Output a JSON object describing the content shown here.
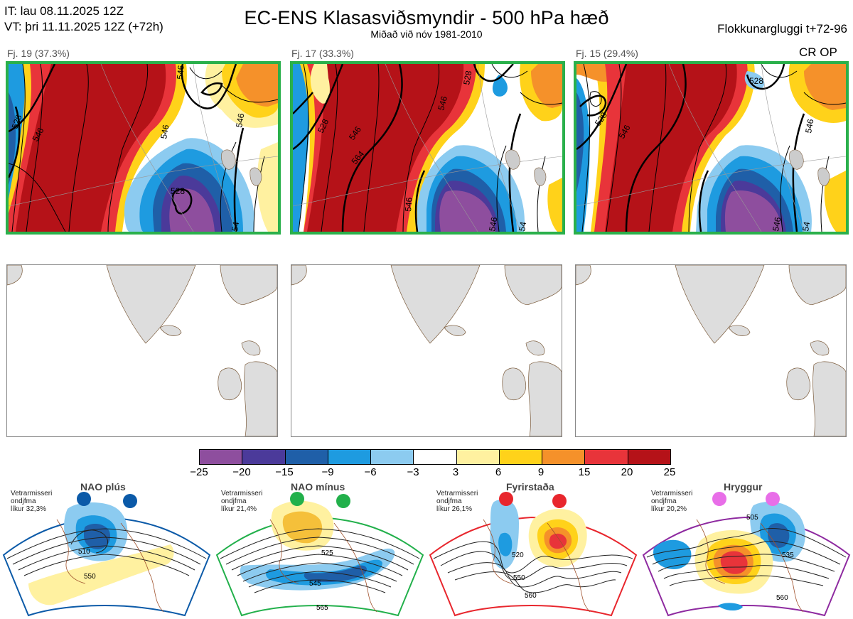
{
  "header": {
    "init_time": "IT: lau 08.11.2025 12Z",
    "valid_time": "VT: þri 11.11.2025 12Z  (+72h)",
    "title": "EC-ENS Klasasviðsmyndir - 500 hPa hæð",
    "subtitle": "Miðað við nóv 1981-2010",
    "window": "Flokkunargluggi t+72-96"
  },
  "clusters": [
    {
      "label": "Fj. 19 (37.3%)",
      "contour_labels": [
        "528",
        "546",
        "546",
        "528",
        "546",
        "546",
        "54"
      ]
    },
    {
      "label": "Fj. 17 (33.3%)",
      "contour_labels": [
        "528",
        "528",
        "546",
        "546",
        "564",
        "546",
        "546",
        "54"
      ]
    },
    {
      "label": "Fj. 15 (29.4%)",
      "contour_labels": [
        "528",
        "528",
        "546",
        "546",
        "546",
        "54"
      ],
      "tag": "CR OP"
    }
  ],
  "colorbar": {
    "colors": [
      "#8e4e9e",
      "#4b3a9a",
      "#1f5fa8",
      "#1e9be0",
      "#8ccbf0",
      "#ffffff",
      "#fff1a0",
      "#ffd21a",
      "#f5912a",
      "#e8343a",
      "#b51218"
    ],
    "ticks": [
      "−25",
      "−20",
      "−15",
      "−9",
      "−6",
      "−3",
      "3",
      "6",
      "9",
      "15",
      "20",
      "25"
    ]
  },
  "regimes": [
    {
      "name": "NAO plús",
      "note": [
        "Vetrarmisseri",
        "ondjfma",
        "líkur 32,3%"
      ],
      "color": "#0b5aa8",
      "contour_labels": [
        "510",
        "550"
      ]
    },
    {
      "name": "NAO mínus",
      "note": [
        "Vetrarmisseri",
        "ondjfma",
        "líkur 21,4%"
      ],
      "color": "#22b04b",
      "contour_labels": [
        "525",
        "545",
        "565"
      ]
    },
    {
      "name": "Fyrirstaða",
      "note": [
        "Vetrarmisseri",
        "ondjfma",
        "líkur 26,1%"
      ],
      "color": "#e8262d",
      "contour_labels": [
        "520",
        "550",
        "560"
      ]
    },
    {
      "name": "Hryggur",
      "note": [
        "Vetrarmisseri",
        "ondjfma",
        "líkur 20,2%"
      ],
      "color": "#e86ee8",
      "contour_labels": [
        "505",
        "535",
        "560"
      ]
    }
  ]
}
